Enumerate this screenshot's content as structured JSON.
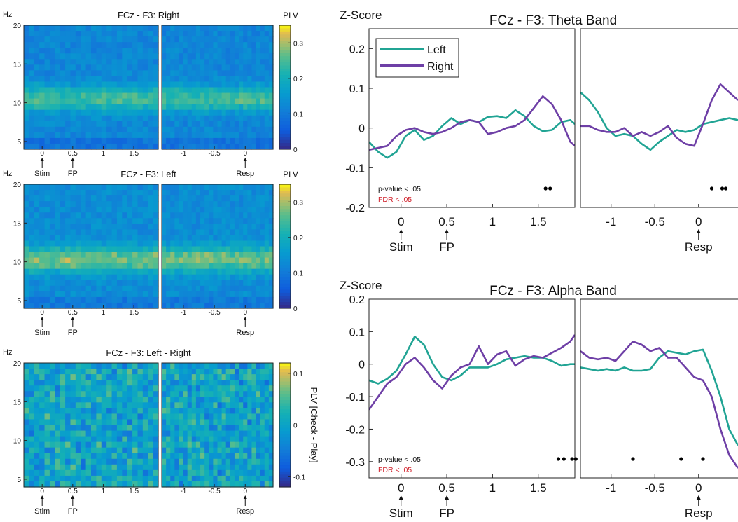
{
  "chart_data": [
    {
      "type": "heatmap",
      "title": "FCz - F3: Right",
      "ylabel": "Hz",
      "y_ticks": [
        5,
        10,
        15,
        20
      ],
      "ylim": [
        4,
        20
      ],
      "left_panel": {
        "x_ticks": [
          "0",
          "0.5",
          "1",
          "1.5"
        ],
        "xlim": [
          -0.3,
          1.9
        ],
        "markers": [
          {
            "x": 0,
            "label": "Stim"
          },
          {
            "x": 0.5,
            "label": "FP"
          }
        ]
      },
      "right_panel": {
        "x_ticks": [
          "-1",
          "-0.5",
          "0"
        ],
        "xlim": [
          -1.35,
          0.45
        ],
        "markers": [
          {
            "x": 0,
            "label": "Resp"
          }
        ]
      },
      "colorbar": {
        "label": "PLV",
        "ticks": [
          "0",
          "0.1",
          "0.2",
          "0.3"
        ],
        "range": [
          0,
          0.35
        ]
      },
      "band_center_hz": 10.5,
      "band_peak": 0.25,
      "background": 0.12,
      "colormap": "parula"
    },
    {
      "type": "heatmap",
      "title": "FCz - F3: Left",
      "ylabel": "Hz",
      "y_ticks": [
        5,
        10,
        15,
        20
      ],
      "ylim": [
        4,
        20
      ],
      "left_panel": {
        "x_ticks": [
          "0",
          "0.5",
          "1",
          "1.5"
        ],
        "xlim": [
          -0.3,
          1.9
        ],
        "markers": [
          {
            "x": 0,
            "label": "Stim"
          },
          {
            "x": 0.5,
            "label": "FP"
          }
        ]
      },
      "right_panel": {
        "x_ticks": [
          "-1",
          "-0.5",
          "0"
        ],
        "xlim": [
          -1.35,
          0.45
        ],
        "markers": [
          {
            "x": 0,
            "label": "Resp"
          }
        ]
      },
      "colorbar": {
        "label": "PLV",
        "ticks": [
          "0",
          "0.1",
          "0.2",
          "0.3"
        ],
        "range": [
          0,
          0.35
        ]
      },
      "band_center_hz": 10.3,
      "band_peak": 0.28,
      "background": 0.13,
      "colormap": "parula"
    },
    {
      "type": "heatmap",
      "title": "FCz - F3: Left - Right",
      "ylabel": "Hz",
      "y_ticks": [
        5,
        10,
        15,
        20
      ],
      "ylim": [
        4,
        20
      ],
      "left_panel": {
        "x_ticks": [
          "0",
          "0.5",
          "1",
          "1.5"
        ],
        "xlim": [
          -0.3,
          1.9
        ],
        "markers": [
          {
            "x": 0,
            "label": "Stim"
          },
          {
            "x": 0.5,
            "label": "FP"
          }
        ]
      },
      "right_panel": {
        "x_ticks": [
          "-1",
          "-0.5",
          "0"
        ],
        "xlim": [
          -1.35,
          0.45
        ],
        "markers": [
          {
            "x": 0,
            "label": "Resp"
          }
        ]
      },
      "colorbar": {
        "label": "PLV [Check - Play]",
        "ticks": [
          "-0.1",
          "0",
          "0.1"
        ],
        "range": [
          -0.12,
          0.12
        ]
      },
      "background": 0.0,
      "colormap": "parula"
    },
    {
      "type": "line",
      "title": "FCz - F3: Theta Band",
      "ylabel": "Z-Score",
      "ylim": [
        -0.2,
        0.25
      ],
      "y_ticks": [
        0.2,
        0.1,
        0,
        -0.1,
        -0.2
      ],
      "y_tick_labels": [
        "0.2",
        "0.1",
        "0",
        "-0.1",
        "-0.2"
      ],
      "legend": {
        "placement": "top-left",
        "entries": [
          "Left",
          "Right"
        ]
      },
      "annotations": {
        "pvalue": "p-value < .05",
        "fdr": "FDR < .05"
      },
      "left_panel": {
        "xlim": [
          -0.35,
          1.9
        ],
        "x_ticks": [
          0,
          0.5,
          1,
          1.5
        ],
        "x_tick_labels": [
          "0",
          "0.5",
          "1",
          "1.5"
        ],
        "markers": [
          {
            "x": 0,
            "label": "Stim"
          },
          {
            "x": 0.5,
            "label": "FP"
          }
        ],
        "series": [
          {
            "name": "Left",
            "color": "#21a494",
            "x": [
              -0.35,
              -0.25,
              -0.15,
              -0.05,
              0.05,
              0.15,
              0.25,
              0.35,
              0.45,
              0.55,
              0.65,
              0.75,
              0.85,
              0.95,
              1.05,
              1.15,
              1.25,
              1.35,
              1.45,
              1.55,
              1.65,
              1.75,
              1.85,
              1.9
            ],
            "values": [
              -0.035,
              -0.06,
              -0.075,
              -0.06,
              -0.02,
              -0.005,
              -0.03,
              -0.02,
              0.005,
              0.025,
              0.01,
              0.02,
              0.015,
              0.028,
              0.03,
              0.025,
              0.045,
              0.03,
              0.005,
              -0.008,
              -0.005,
              0.015,
              0.02,
              0.01
            ]
          },
          {
            "name": "Right",
            "color": "#6e3fa6",
            "x": [
              -0.35,
              -0.25,
              -0.15,
              -0.05,
              0.05,
              0.15,
              0.25,
              0.35,
              0.45,
              0.55,
              0.65,
              0.75,
              0.85,
              0.95,
              1.05,
              1.15,
              1.25,
              1.35,
              1.45,
              1.55,
              1.65,
              1.75,
              1.85,
              1.9
            ],
            "values": [
              -0.055,
              -0.05,
              -0.045,
              -0.02,
              -0.005,
              0.0,
              -0.01,
              -0.015,
              -0.01,
              0.0,
              0.015,
              0.02,
              0.015,
              -0.015,
              -0.01,
              0.0,
              0.005,
              0.02,
              0.05,
              0.08,
              0.06,
              0.02,
              -0.035,
              -0.045
            ]
          }
        ],
        "sig_dots": [
          1.58,
          1.63
        ]
      },
      "right_panel": {
        "xlim": [
          -1.35,
          0.45
        ],
        "x_ticks": [
          -1,
          -0.5,
          0
        ],
        "x_tick_labels": [
          "-1",
          "-0.5",
          "0"
        ],
        "markers": [
          {
            "x": 0,
            "label": "Resp"
          }
        ],
        "series": [
          {
            "name": "Left",
            "color": "#21a494",
            "x": [
              -1.35,
              -1.25,
              -1.15,
              -1.05,
              -0.95,
              -0.85,
              -0.75,
              -0.65,
              -0.55,
              -0.45,
              -0.35,
              -0.25,
              -0.15,
              -0.05,
              0.05,
              0.15,
              0.25,
              0.35,
              0.45
            ],
            "values": [
              0.09,
              0.07,
              0.04,
              0.0,
              -0.02,
              -0.015,
              -0.02,
              -0.04,
              -0.055,
              -0.035,
              -0.02,
              -0.005,
              -0.01,
              -0.005,
              0.01,
              0.015,
              0.02,
              0.025,
              0.02
            ]
          },
          {
            "name": "Right",
            "color": "#6e3fa6",
            "x": [
              -1.35,
              -1.25,
              -1.15,
              -1.05,
              -0.95,
              -0.85,
              -0.75,
              -0.65,
              -0.55,
              -0.45,
              -0.35,
              -0.25,
              -0.15,
              -0.05,
              0.05,
              0.15,
              0.25,
              0.35,
              0.45
            ],
            "values": [
              0.005,
              0.005,
              -0.005,
              -0.01,
              -0.01,
              0.0,
              -0.02,
              -0.01,
              -0.02,
              -0.01,
              0.005,
              -0.025,
              -0.04,
              -0.045,
              0.01,
              0.07,
              0.11,
              0.09,
              0.07
            ]
          }
        ],
        "sig_dots": [
          0.15,
          0.27,
          0.31
        ]
      }
    },
    {
      "type": "line",
      "title": "FCz - F3: Alpha Band",
      "ylabel": "Z-Score",
      "ylim": [
        -0.35,
        0.2
      ],
      "y_ticks": [
        0.2,
        0.1,
        0,
        -0.1,
        -0.2,
        -0.3
      ],
      "y_tick_labels": [
        "0.2",
        "0.1",
        "0",
        "-0.1",
        "-0.2",
        "-0.3"
      ],
      "annotations": {
        "pvalue": "p-value < .05",
        "fdr": "FDR < .05"
      },
      "left_panel": {
        "xlim": [
          -0.35,
          1.9
        ],
        "x_ticks": [
          0,
          0.5,
          1,
          1.5
        ],
        "x_tick_labels": [
          "0",
          "0.5",
          "1",
          "1.5"
        ],
        "markers": [
          {
            "x": 0,
            "label": "Stim"
          },
          {
            "x": 0.5,
            "label": "FP"
          }
        ],
        "series": [
          {
            "name": "Left",
            "color": "#21a494",
            "x": [
              -0.35,
              -0.25,
              -0.15,
              -0.05,
              0.05,
              0.15,
              0.25,
              0.35,
              0.45,
              0.55,
              0.65,
              0.75,
              0.85,
              0.95,
              1.05,
              1.15,
              1.25,
              1.35,
              1.45,
              1.55,
              1.65,
              1.75,
              1.85,
              1.9
            ],
            "values": [
              -0.05,
              -0.06,
              -0.045,
              -0.02,
              0.03,
              0.085,
              0.06,
              0.0,
              -0.04,
              -0.05,
              -0.035,
              -0.01,
              -0.01,
              -0.01,
              0.0,
              0.015,
              0.02,
              0.025,
              0.02,
              0.02,
              0.01,
              -0.005,
              0.0,
              0.0
            ]
          },
          {
            "name": "Right",
            "color": "#6e3fa6",
            "x": [
              -0.35,
              -0.25,
              -0.15,
              -0.05,
              0.05,
              0.15,
              0.25,
              0.35,
              0.45,
              0.55,
              0.65,
              0.75,
              0.85,
              0.95,
              1.05,
              1.15,
              1.25,
              1.35,
              1.45,
              1.55,
              1.65,
              1.75,
              1.85,
              1.9
            ],
            "values": [
              -0.14,
              -0.1,
              -0.06,
              -0.04,
              0.0,
              0.02,
              -0.01,
              -0.05,
              -0.075,
              -0.035,
              -0.01,
              0.0,
              0.055,
              0.0,
              0.03,
              0.04,
              -0.005,
              0.015,
              0.025,
              0.02,
              0.035,
              0.05,
              0.07,
              0.09
            ]
          }
        ],
        "sig_dots": [
          1.72,
          1.78,
          1.87,
          1.91
        ]
      },
      "right_panel": {
        "xlim": [
          -1.35,
          0.45
        ],
        "x_ticks": [
          -1,
          -0.5,
          0
        ],
        "x_tick_labels": [
          "-1",
          "-0.5",
          "0"
        ],
        "markers": [
          {
            "x": 0,
            "label": "Resp"
          }
        ],
        "series": [
          {
            "name": "Left",
            "color": "#21a494",
            "x": [
              -1.35,
              -1.25,
              -1.15,
              -1.05,
              -0.95,
              -0.85,
              -0.75,
              -0.65,
              -0.55,
              -0.45,
              -0.35,
              -0.25,
              -0.15,
              -0.05,
              0.05,
              0.15,
              0.25,
              0.35,
              0.45
            ],
            "values": [
              -0.01,
              -0.015,
              -0.02,
              -0.015,
              -0.02,
              -0.01,
              -0.02,
              -0.02,
              -0.015,
              0.02,
              0.04,
              0.035,
              0.03,
              0.04,
              0.045,
              -0.02,
              -0.1,
              -0.2,
              -0.25
            ]
          },
          {
            "name": "Right",
            "color": "#6e3fa6",
            "x": [
              -1.35,
              -1.25,
              -1.15,
              -1.05,
              -0.95,
              -0.85,
              -0.75,
              -0.65,
              -0.55,
              -0.45,
              -0.35,
              -0.25,
              -0.15,
              -0.05,
              0.05,
              0.15,
              0.25,
              0.35,
              0.45
            ],
            "values": [
              0.04,
              0.02,
              0.015,
              0.02,
              0.01,
              0.04,
              0.07,
              0.06,
              0.04,
              0.05,
              0.02,
              0.02,
              -0.01,
              -0.04,
              -0.05,
              -0.1,
              -0.2,
              -0.28,
              -0.32
            ]
          }
        ],
        "sig_dots": [
          -0.75,
          -0.2,
          0.05
        ]
      }
    }
  ]
}
